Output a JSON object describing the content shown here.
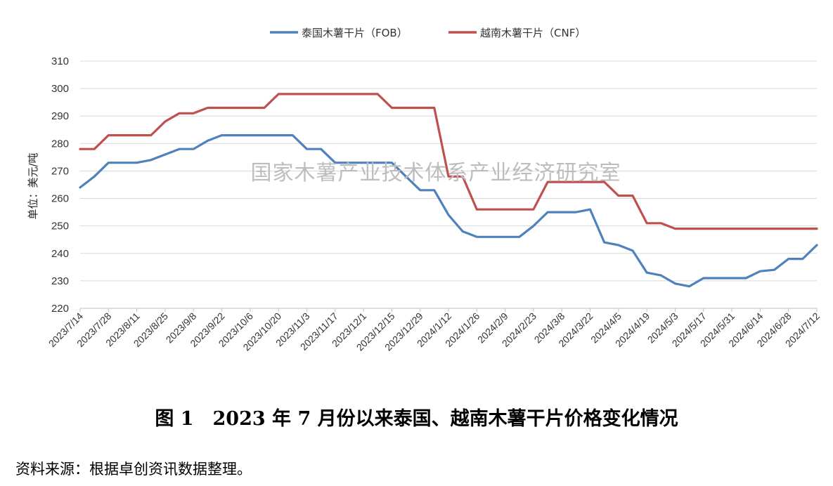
{
  "chart_data": {
    "type": "line",
    "title": "",
    "ylabel": "单位：美元/吨",
    "xlabel": "",
    "ylim": [
      220,
      310
    ],
    "yticks": [
      220,
      230,
      240,
      250,
      260,
      270,
      280,
      290,
      300,
      310
    ],
    "grid": true,
    "legend_position": "top",
    "x_tick_labels": [
      "2023/7/14",
      "2023/7/28",
      "2023/8/11",
      "2023/8/25",
      "2023/9/8",
      "2023/9/22",
      "2023/10/6",
      "2023/10/20",
      "2023/11/3",
      "2023/11/17",
      "2023/12/1",
      "2023/12/15",
      "2023/12/29",
      "2024/1/12",
      "2024/1/26",
      "2024/2/9",
      "2024/2/23",
      "2024/3/8",
      "2024/3/22",
      "2024/4/5",
      "2024/4/19",
      "2024/5/3",
      "2024/5/17",
      "2024/5/31",
      "2024/6/14",
      "2024/6/28",
      "2024/7/12"
    ],
    "x": [
      "2023/7/14",
      "2023/7/21",
      "2023/7/28",
      "2023/8/4",
      "2023/8/11",
      "2023/8/18",
      "2023/8/25",
      "2023/9/1",
      "2023/9/8",
      "2023/9/15",
      "2023/9/22",
      "2023/9/29",
      "2023/10/6",
      "2023/10/13",
      "2023/10/20",
      "2023/10/27",
      "2023/11/3",
      "2023/11/10",
      "2023/11/17",
      "2023/11/24",
      "2023/12/1",
      "2023/12/8",
      "2023/12/15",
      "2023/12/22",
      "2023/12/29",
      "2024/1/5",
      "2024/1/12",
      "2024/1/19",
      "2024/1/26",
      "2024/2/2",
      "2024/2/9",
      "2024/2/16",
      "2024/2/23",
      "2024/3/1",
      "2024/3/8",
      "2024/3/15",
      "2024/3/22",
      "2024/3/29",
      "2024/4/5",
      "2024/4/12",
      "2024/4/19",
      "2024/4/26",
      "2024/5/3",
      "2024/5/10",
      "2024/5/17",
      "2024/5/24",
      "2024/5/31",
      "2024/6/7",
      "2024/6/14",
      "2024/6/21",
      "2024/6/28",
      "2024/7/5",
      "2024/7/12"
    ],
    "series": [
      {
        "name": "泰国木薯干片（FOB）",
        "color": "#4f81bd",
        "values": [
          264,
          268,
          273,
          273,
          273,
          274,
          276,
          278,
          278,
          281,
          283,
          283,
          283,
          283,
          283,
          283,
          278,
          278,
          273,
          273,
          273,
          273,
          273,
          268,
          263,
          263,
          254,
          248,
          246,
          246,
          246,
          246,
          250,
          255,
          255,
          255,
          256,
          244,
          243,
          241,
          233,
          232,
          229,
          228,
          231,
          231,
          231,
          231,
          233.5,
          234,
          238,
          238,
          243
        ]
      },
      {
        "name": "越南木薯干片（CNF）",
        "color": "#c0504d",
        "values": [
          278,
          278,
          283,
          283,
          283,
          283,
          288,
          291,
          291,
          293,
          293,
          293,
          293,
          293,
          298,
          298,
          298,
          298,
          298,
          298,
          298,
          298,
          293,
          293,
          293,
          293,
          268,
          268,
          256,
          256,
          256,
          256,
          256,
          266,
          266,
          266,
          266,
          266,
          261,
          261,
          251,
          251,
          249,
          249,
          249,
          249,
          249,
          249,
          249,
          249,
          249,
          249,
          249
        ]
      }
    ]
  },
  "watermark": "国家木薯产业技术体系产业经济研究室",
  "figure_title": "图 1　2023 年 7 月份以来泰国、越南木薯干片价格变化情况",
  "source_note": "资料来源：根据卓创资讯数据整理。"
}
